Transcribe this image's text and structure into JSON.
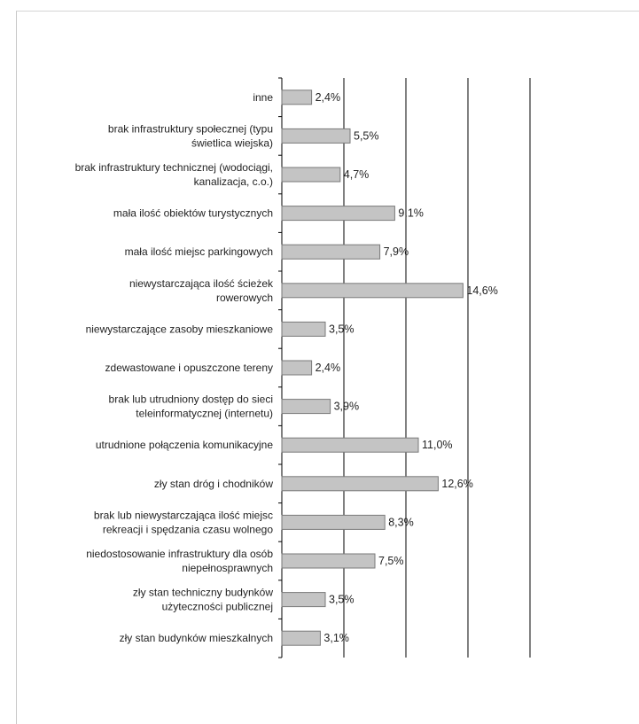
{
  "chart_data": {
    "type": "bar",
    "orientation": "horizontal",
    "categories": [
      [
        "inne"
      ],
      [
        "brak infrastruktury społecznej (typu",
        "świetlica wiejska)"
      ],
      [
        "brak infrastruktury technicznej (wodociągi,",
        "kanalizacja, c.o.)"
      ],
      [
        "mała ilość obiektów turystycznych"
      ],
      [
        "mała ilość miejsc parkingowych"
      ],
      [
        "niewystarczająca ilość ścieżek",
        "rowerowych"
      ],
      [
        "niewystarczające zasoby mieszkaniowe"
      ],
      [
        "zdewastowane i opuszczone tereny"
      ],
      [
        "brak lub utrudniony dostęp do sieci",
        "teleinformatycznej (internetu)"
      ],
      [
        "utrudnione połączenia komunikacyjne"
      ],
      [
        "zły stan dróg i chodników"
      ],
      [
        "brak lub niewystarczająca ilość miejsc",
        "rekreacji i spędzania czasu wolnego"
      ],
      [
        "niedostosowanie infrastruktury dla osób",
        "niepełnosprawnych"
      ],
      [
        "zły stan techniczny budynków",
        "użyteczności publicznej"
      ],
      [
        "zły stan budynków mieszkalnych"
      ]
    ],
    "values": [
      2.4,
      5.5,
      4.7,
      9.1,
      7.9,
      14.6,
      3.5,
      2.4,
      3.9,
      11.0,
      12.6,
      8.3,
      7.5,
      3.5,
      3.1
    ],
    "value_labels": [
      "2,4%",
      "5,5%",
      "4,7%",
      "9,1%",
      "7,9%",
      "14,6%",
      "3,5%",
      "2,4%",
      "3,9%",
      "11,0%",
      "12,6%",
      "8,3%",
      "7,5%",
      "3,5%",
      "3,1%"
    ],
    "xlim": [
      0,
      20
    ],
    "x_gridlines": [
      5,
      10,
      15,
      20
    ],
    "grid": true,
    "legend": "none",
    "colors": {
      "bar_fill": "#c4c4c4",
      "bar_edge": "#7a7a7a",
      "axis": "#000000",
      "grid": "#000000"
    }
  }
}
